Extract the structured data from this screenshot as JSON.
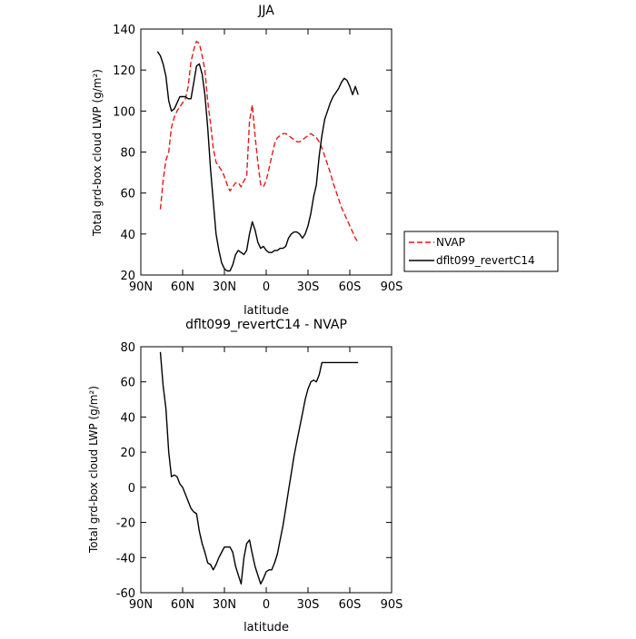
{
  "chart_data": [
    {
      "type": "line",
      "title": "JJA",
      "xlabel": "latitude",
      "ylabel": "Total grd-box cloud LWP (g/m²)",
      "xlim": [
        90,
        -90
      ],
      "ylim": [
        20,
        140
      ],
      "xticks": [
        {
          "value": 90,
          "label": "90N"
        },
        {
          "value": 60,
          "label": "60N"
        },
        {
          "value": 30,
          "label": "30N"
        },
        {
          "value": 0,
          "label": "0"
        },
        {
          "value": -30,
          "label": "30S"
        },
        {
          "value": -60,
          "label": "60S"
        },
        {
          "value": -90,
          "label": "90S"
        }
      ],
      "yticks": [
        20,
        40,
        60,
        80,
        100,
        120,
        140
      ],
      "grid": false,
      "legend": "right",
      "series": [
        {
          "name": "NVAP",
          "color": "#e31a1c",
          "dash": "dashed",
          "x": [
            76,
            74,
            72,
            70,
            68,
            66,
            64,
            62,
            60,
            58,
            56,
            54,
            52,
            50,
            48,
            46,
            44,
            42,
            40,
            38,
            36,
            34,
            32,
            30,
            28,
            26,
            24,
            22,
            20,
            18,
            16,
            14,
            12,
            10,
            8,
            6,
            4,
            2,
            0,
            -2,
            -4,
            -6,
            -8,
            -10,
            -12,
            -14,
            -16,
            -18,
            -20,
            -22,
            -24,
            -26,
            -28,
            -30,
            -32,
            -34,
            -36,
            -38,
            -40,
            -42,
            -44,
            -46,
            -48,
            -50,
            -52,
            -54,
            -56,
            -58,
            -60,
            -62,
            -64,
            -66
          ],
          "y": [
            52,
            66,
            76,
            80,
            92,
            97,
            100,
            102,
            104,
            106,
            112,
            124,
            130,
            134,
            133,
            127,
            120,
            105,
            94,
            82,
            75,
            73,
            71,
            68,
            64,
            61,
            63,
            65,
            65,
            63,
            66,
            68,
            95,
            103,
            88,
            75,
            64,
            63,
            66,
            72,
            78,
            84,
            87,
            88,
            89,
            89,
            88,
            87,
            86,
            85,
            85,
            86,
            87,
            88,
            89,
            88,
            87,
            85,
            82,
            78,
            74,
            70,
            65,
            61,
            57,
            53,
            50,
            47,
            44,
            41,
            38,
            36
          ]
        },
        {
          "name": "dflt099_revertC14",
          "color": "#000000",
          "dash": "solid",
          "x": [
            78,
            76,
            74,
            72,
            70,
            68,
            66,
            64,
            62,
            60,
            58,
            56,
            54,
            52,
            50,
            48,
            46,
            44,
            42,
            40,
            38,
            36,
            34,
            32,
            30,
            28,
            26,
            24,
            22,
            20,
            18,
            16,
            14,
            12,
            10,
            8,
            6,
            4,
            2,
            0,
            -2,
            -4,
            -6,
            -8,
            -10,
            -12,
            -14,
            -16,
            -18,
            -20,
            -22,
            -24,
            -26,
            -28,
            -30,
            -32,
            -34,
            -36,
            -38,
            -40,
            -42,
            -44,
            -46,
            -48,
            -50,
            -52,
            -54,
            -56,
            -58,
            -60,
            -62,
            -64,
            -66
          ],
          "y": [
            129,
            127,
            123,
            117,
            105,
            100,
            101,
            104,
            107,
            107,
            107,
            106,
            106,
            114,
            122,
            123,
            118,
            108,
            92,
            72,
            56,
            40,
            32,
            26,
            23,
            22,
            22,
            25,
            30,
            32,
            31,
            30,
            32,
            40,
            46,
            42,
            36,
            33,
            34,
            32,
            31,
            31,
            32,
            32,
            33,
            33,
            34,
            38,
            40,
            41,
            41,
            40,
            38,
            40,
            44,
            50,
            58,
            64,
            78,
            88,
            96,
            100,
            104,
            107,
            109,
            111,
            114,
            116,
            115,
            112,
            108,
            112,
            108
          ]
        }
      ]
    },
    {
      "type": "line",
      "title": "dflt099_revertC14 - NVAP",
      "xlabel": "latitude",
      "ylabel": "Total grd-box cloud LWP (g/m²)",
      "xlim": [
        90,
        -90
      ],
      "ylim": [
        -60,
        80
      ],
      "xticks": [
        {
          "value": 90,
          "label": "90N"
        },
        {
          "value": 60,
          "label": "60N"
        },
        {
          "value": 30,
          "label": "30N"
        },
        {
          "value": 0,
          "label": "0"
        },
        {
          "value": -30,
          "label": "30S"
        },
        {
          "value": -60,
          "label": "60S"
        },
        {
          "value": -90,
          "label": "90S"
        }
      ],
      "yticks": [
        -60,
        -40,
        -20,
        0,
        20,
        40,
        60,
        80
      ],
      "grid": false,
      "series": [
        {
          "color": "#000000",
          "dash": "solid",
          "x": [
            76,
            74,
            72,
            70,
            68,
            66,
            64,
            62,
            60,
            58,
            56,
            54,
            52,
            50,
            48,
            46,
            44,
            42,
            40,
            38,
            36,
            34,
            32,
            30,
            28,
            26,
            24,
            22,
            20,
            18,
            16,
            14,
            12,
            10,
            8,
            6,
            4,
            2,
            0,
            -2,
            -4,
            -6,
            -8,
            -10,
            -12,
            -14,
            -16,
            -18,
            -20,
            -22,
            -24,
            -26,
            -28,
            -30,
            -32,
            -34,
            -36,
            -38,
            -40,
            -42,
            -44,
            -46,
            -48,
            -50,
            -52,
            -54,
            -56,
            -58,
            -60,
            -62,
            -64,
            -66
          ],
          "y": [
            77,
            58,
            45,
            20,
            6,
            7,
            6,
            2,
            0,
            -4,
            -8,
            -12,
            -14,
            -15,
            -25,
            -32,
            -37,
            -43,
            -44,
            -47,
            -44,
            -40,
            -37,
            -34,
            -34,
            -34,
            -37,
            -45,
            -50,
            -55,
            -40,
            -32,
            -30,
            -38,
            -45,
            -50,
            -55,
            -52,
            -48,
            -47,
            -47,
            -43,
            -38,
            -30,
            -22,
            -12,
            -2,
            8,
            18,
            26,
            34,
            42,
            50,
            56,
            60,
            61,
            60,
            64,
            71,
            71,
            71,
            71,
            71,
            71,
            71,
            71,
            71,
            71,
            71,
            71,
            71,
            71
          ]
        }
      ]
    }
  ]
}
